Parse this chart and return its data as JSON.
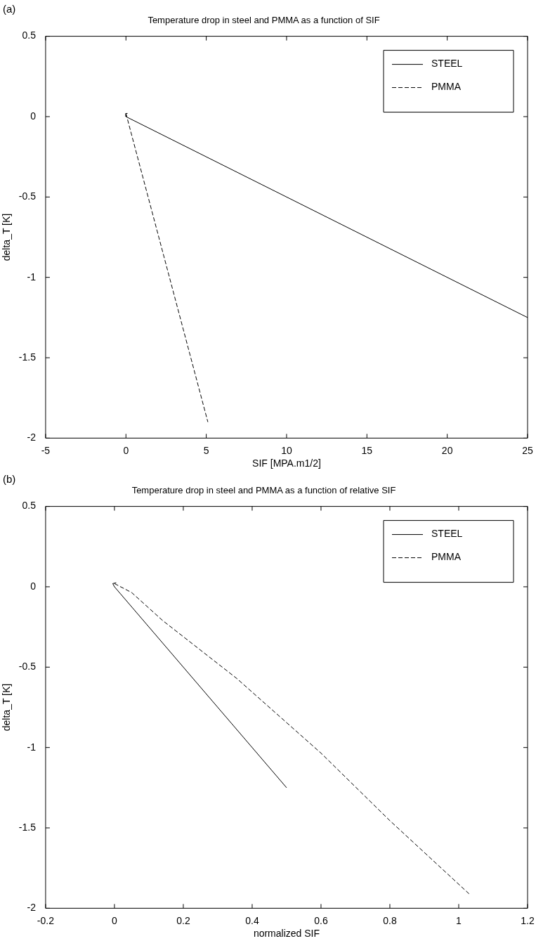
{
  "chart_data": [
    {
      "type": "line",
      "title": "Temperature drop in steel and PMMA as a function of SIF",
      "xlabel": "SIF [MPA.m1/2]",
      "ylabel": "delta_T [K]",
      "annotations": [
        "(a)"
      ],
      "series": [
        {
          "name": "STEEL",
          "color": "#000000",
          "line_style": "solid",
          "x": [
            0.1,
            0,
            0,
            25
          ],
          "values": [
            0.02,
            0.02,
            0,
            -1.25
          ]
        },
        {
          "name": "PMMA",
          "color": "#000000",
          "line_style": "dashed",
          "x": [
            0,
            5.1
          ],
          "values": [
            0.02,
            -1.9
          ]
        }
      ],
      "xlim": [
        -5,
        25
      ],
      "xticks": [
        -5,
        0,
        5,
        10,
        15,
        20,
        25
      ],
      "ylim": [
        -2,
        0.5
      ],
      "yticks": [
        -2,
        -1.5,
        -1,
        -0.5,
        0,
        0.5
      ],
      "grid": false,
      "legend": "top right",
      "marker": "none"
    },
    {
      "type": "line",
      "title": "Temperature drop in steel and PMMA as a function of relative SIF",
      "xlabel": "normalized SIF",
      "ylabel": "delta_T [K]",
      "annotations": [
        "(b)"
      ],
      "series": [
        {
          "name": "STEEL",
          "color": "#000000",
          "line_style": "solid",
          "x": [
            0.005,
            -0.005,
            0,
            0.5
          ],
          "values": [
            0.025,
            0.02,
            0,
            -1.25
          ]
        },
        {
          "name": "PMMA",
          "color": "#000000",
          "line_style": "dashed",
          "x": [
            0,
            0.05,
            0.14,
            0.355,
            0.6,
            0.8,
            1.03
          ],
          "values": [
            0.02,
            -0.036,
            -0.21,
            -0.57,
            -1.035,
            -1.455,
            -1.91
          ]
        }
      ],
      "xlim": [
        -0.2,
        1.2
      ],
      "xticks": [
        -0.2,
        0,
        0.2,
        0.4,
        0.6,
        0.8,
        1,
        1.2
      ],
      "ylim": [
        -2,
        0.5
      ],
      "yticks": [
        -2,
        -1.5,
        -1,
        -0.5,
        0,
        0.5
      ],
      "grid": false,
      "legend": "top right",
      "marker": "none"
    }
  ]
}
